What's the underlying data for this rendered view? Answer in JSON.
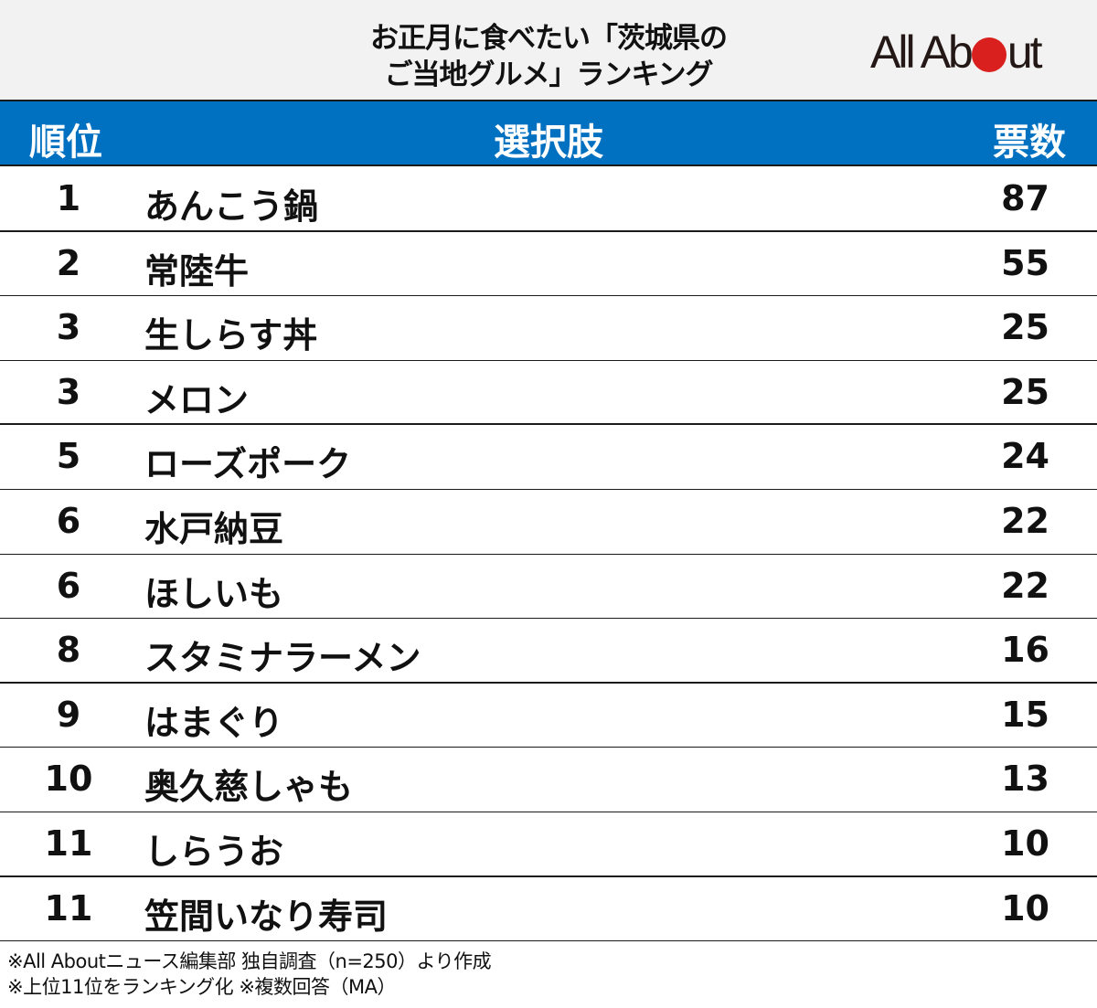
{
  "header": {
    "title_line1": "お正月に食べたい「茨城県の",
    "title_line2": "ご当地グルメ」ランキング",
    "logo": {
      "prefix": "All Ab",
      "suffix": "ut",
      "dot_color": "#d9201e"
    }
  },
  "table": {
    "columns": [
      "順位",
      "選択肢",
      "票数"
    ],
    "header_color": "#0070c0",
    "rows": [
      {
        "rank": "1",
        "choice": "あんこう鍋",
        "votes": "87"
      },
      {
        "rank": "2",
        "choice": "常陸牛",
        "votes": "55"
      },
      {
        "rank": "3",
        "choice": "生しらす丼",
        "votes": "25"
      },
      {
        "rank": "3",
        "choice": "メロン",
        "votes": "25"
      },
      {
        "rank": "5",
        "choice": "ローズポーク",
        "votes": "24"
      },
      {
        "rank": "6",
        "choice": "水戸納豆",
        "votes": "22"
      },
      {
        "rank": "6",
        "choice": "ほしいも",
        "votes": "22"
      },
      {
        "rank": "8",
        "choice": "スタミナラーメン",
        "votes": "16"
      },
      {
        "rank": "9",
        "choice": "はまぐり",
        "votes": "15"
      },
      {
        "rank": "10",
        "choice": "奥久慈しゃも",
        "votes": "13"
      },
      {
        "rank": "11",
        "choice": "しらうお",
        "votes": "10"
      },
      {
        "rank": "11",
        "choice": "笠間いなり寿司",
        "votes": "10"
      }
    ]
  },
  "notes": {
    "line1": "※All Aboutニュース編集部 独自調査（n=250）より作成",
    "line2": "※上位11位をランキング化 ※複数回答（MA）"
  },
  "chart_data": {
    "type": "table",
    "title": "お正月に食べたい「茨城県のご当地グルメ」ランキング",
    "columns": [
      "順位",
      "選択肢",
      "票数"
    ],
    "categories": [
      "あんこう鍋",
      "常陸牛",
      "生しらす丼",
      "メロン",
      "ローズポーク",
      "水戸納豆",
      "ほしいも",
      "スタミナラーメン",
      "はまぐり",
      "奥久慈しゃも",
      "しらうお",
      "笠間いなり寿司"
    ],
    "ranks": [
      1,
      2,
      3,
      3,
      5,
      6,
      6,
      8,
      9,
      10,
      11,
      11
    ],
    "values": [
      87,
      55,
      25,
      25,
      24,
      22,
      22,
      16,
      15,
      13,
      10,
      10
    ],
    "notes": [
      "※All Aboutニュース編集部 独自調査（n=250）より作成",
      "※上位11位をランキング化 ※複数回答（MA）"
    ]
  }
}
